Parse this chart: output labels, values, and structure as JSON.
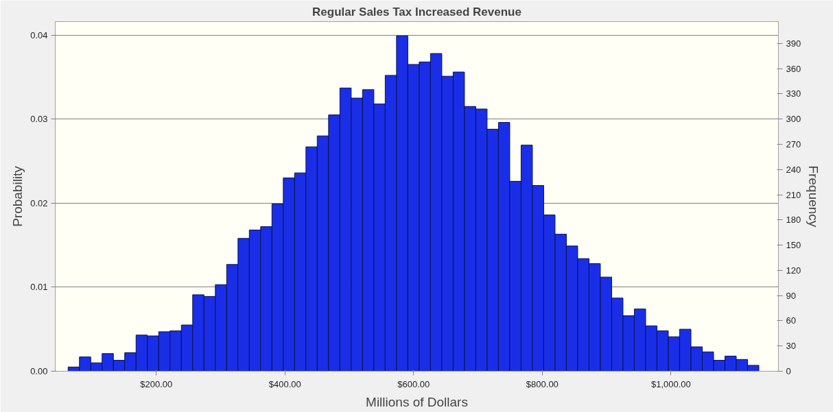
{
  "chart_data": {
    "type": "histogram",
    "title": "Regular Sales Tax Increased Revenue",
    "xlabel": "Millions of Dollars",
    "ylabel": "Probability",
    "y2label": "Frequency",
    "color": "#1a2ee8",
    "bins": [
      63.0,
      80.6,
      98.2,
      115.8,
      133.4,
      151.0,
      168.6,
      186.2,
      203.8,
      221.4,
      239.0,
      256.6,
      274.2,
      291.8,
      309.4,
      327.0,
      344.6,
      362.2,
      379.8,
      397.4,
      415.0,
      432.6,
      450.2,
      467.8,
      485.4,
      503.0,
      520.6,
      538.2,
      555.8,
      573.4,
      591.0,
      608.6,
      626.2,
      643.8,
      661.4,
      679.0,
      696.6,
      714.2,
      731.8,
      749.4,
      767.0,
      784.6,
      802.2,
      819.8,
      837.4,
      855.0,
      872.6,
      890.2,
      907.8,
      925.4,
      943.0,
      960.6,
      978.2,
      995.8,
      1013.4,
      1031.0,
      1048.6,
      1066.2,
      1083.8,
      1101.4,
      1119.0,
      1136.6
    ],
    "values": [
      0.0005,
      0.0017,
      0.001,
      0.0021,
      0.0013,
      0.0022,
      0.0043,
      0.0042,
      0.0047,
      0.0048,
      0.0055,
      0.0091,
      0.0089,
      0.0103,
      0.0127,
      0.0158,
      0.0168,
      0.0172,
      0.0199,
      0.023,
      0.0236,
      0.0267,
      0.028,
      0.0305,
      0.0337,
      0.0325,
      0.0335,
      0.0318,
      0.0352,
      0.0399,
      0.0365,
      0.0368,
      0.0378,
      0.0351,
      0.0356,
      0.0315,
      0.0312,
      0.0288,
      0.0296,
      0.0226,
      0.0269,
      0.0221,
      0.0186,
      0.0163,
      0.0149,
      0.0134,
      0.0128,
      0.0112,
      0.0087,
      0.0066,
      0.0074,
      0.0054,
      0.0048,
      0.0041,
      0.005,
      0.0029,
      0.0023,
      0.0013,
      0.0018,
      0.0014,
      0.0007
    ],
    "xlim": [
      43,
      1167
    ],
    "xticks": [
      {
        "value": 200,
        "label": "$200.00"
      },
      {
        "value": 400,
        "label": "$400.00"
      },
      {
        "value": 600,
        "label": "$600.00"
      },
      {
        "value": 800,
        "label": "$800.00"
      },
      {
        "value": 1000,
        "label": "$1,000.00"
      }
    ],
    "ylim": [
      0,
      0.0416
    ],
    "yticks": [
      {
        "value": 0,
        "label": "0.00"
      },
      {
        "value": 0.01,
        "label": "0.01"
      },
      {
        "value": 0.02,
        "label": "0.02"
      },
      {
        "value": 0.03,
        "label": "0.03"
      },
      {
        "value": 0.04,
        "label": "0.04"
      }
    ],
    "y2lim": [
      0,
      416
    ],
    "y2ticks": [
      0,
      30,
      60,
      90,
      120,
      150,
      180,
      210,
      240,
      270,
      300,
      330,
      360,
      390
    ],
    "grid": "y"
  }
}
